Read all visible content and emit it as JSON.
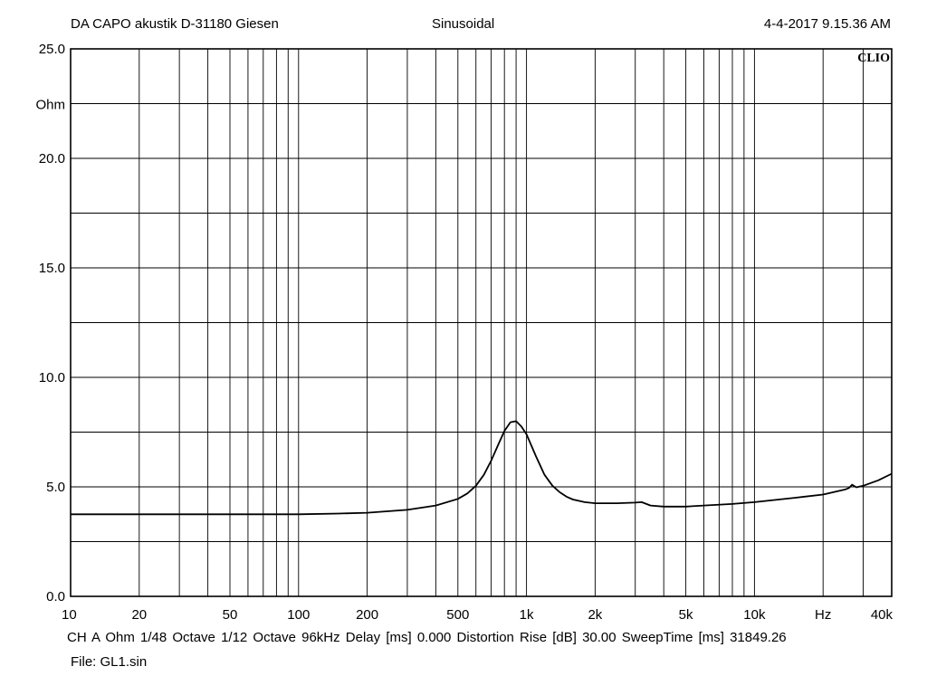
{
  "header": {
    "left": "DA CAPO akustik D-31180 Giesen",
    "center": "Sinusoidal",
    "right": "4-4-2017 9.15.36 AM"
  },
  "footer": {
    "params": "CH A   Ohm    1/48 Octave   1/12 Octave   96kHz   Delay [ms] 0.000    Distortion Rise [dB] 30.00    SweepTime [ms] 31849.26",
    "file": "File: GL1.sin"
  },
  "chart_data": {
    "type": "line",
    "title": "",
    "xlabel": "Hz",
    "ylabel": "Ohm",
    "x_scale": "log",
    "xlim": [
      10,
      40000
    ],
    "ylim": [
      0,
      25
    ],
    "grid": true,
    "logo": "CLIO",
    "y_ticks": [
      {
        "value": 0,
        "label": "0.0"
      },
      {
        "value": 5,
        "label": "5.0"
      },
      {
        "value": 10,
        "label": "10.0"
      },
      {
        "value": 15,
        "label": "15.0"
      },
      {
        "value": 20,
        "label": "20.0"
      },
      {
        "value": 25,
        "label": "25.0"
      }
    ],
    "x_ticks": [
      {
        "value": 10,
        "label": "10"
      },
      {
        "value": 20,
        "label": "20"
      },
      {
        "value": 50,
        "label": "50"
      },
      {
        "value": 100,
        "label": "100"
      },
      {
        "value": 200,
        "label": "200"
      },
      {
        "value": 500,
        "label": "500"
      },
      {
        "value": 1000,
        "label": "1k"
      },
      {
        "value": 2000,
        "label": "2k"
      },
      {
        "value": 5000,
        "label": "5k"
      },
      {
        "value": 10000,
        "label": "10k"
      },
      {
        "value": 40000,
        "label": "40k"
      }
    ],
    "series": [
      {
        "color": "#000000",
        "x": [
          10,
          20,
          50,
          100,
          150,
          200,
          300,
          400,
          500,
          550,
          600,
          650,
          700,
          750,
          800,
          850,
          900,
          950,
          1000,
          1100,
          1200,
          1300,
          1400,
          1500,
          1600,
          1800,
          2000,
          2500,
          3000,
          3200,
          3500,
          4000,
          5000,
          6000,
          8000,
          10000,
          15000,
          20000,
          25000,
          26000,
          26800,
          28000,
          30000,
          35000,
          40000
        ],
        "y": [
          3.75,
          3.75,
          3.75,
          3.75,
          3.78,
          3.82,
          3.95,
          4.15,
          4.45,
          4.7,
          5.05,
          5.55,
          6.2,
          6.9,
          7.55,
          7.95,
          8.0,
          7.75,
          7.4,
          6.4,
          5.55,
          5.05,
          4.75,
          4.55,
          4.42,
          4.3,
          4.25,
          4.25,
          4.28,
          4.3,
          4.15,
          4.1,
          4.1,
          4.15,
          4.22,
          4.3,
          4.5,
          4.65,
          4.88,
          4.95,
          5.1,
          4.98,
          5.05,
          5.3,
          5.6
        ]
      }
    ]
  }
}
